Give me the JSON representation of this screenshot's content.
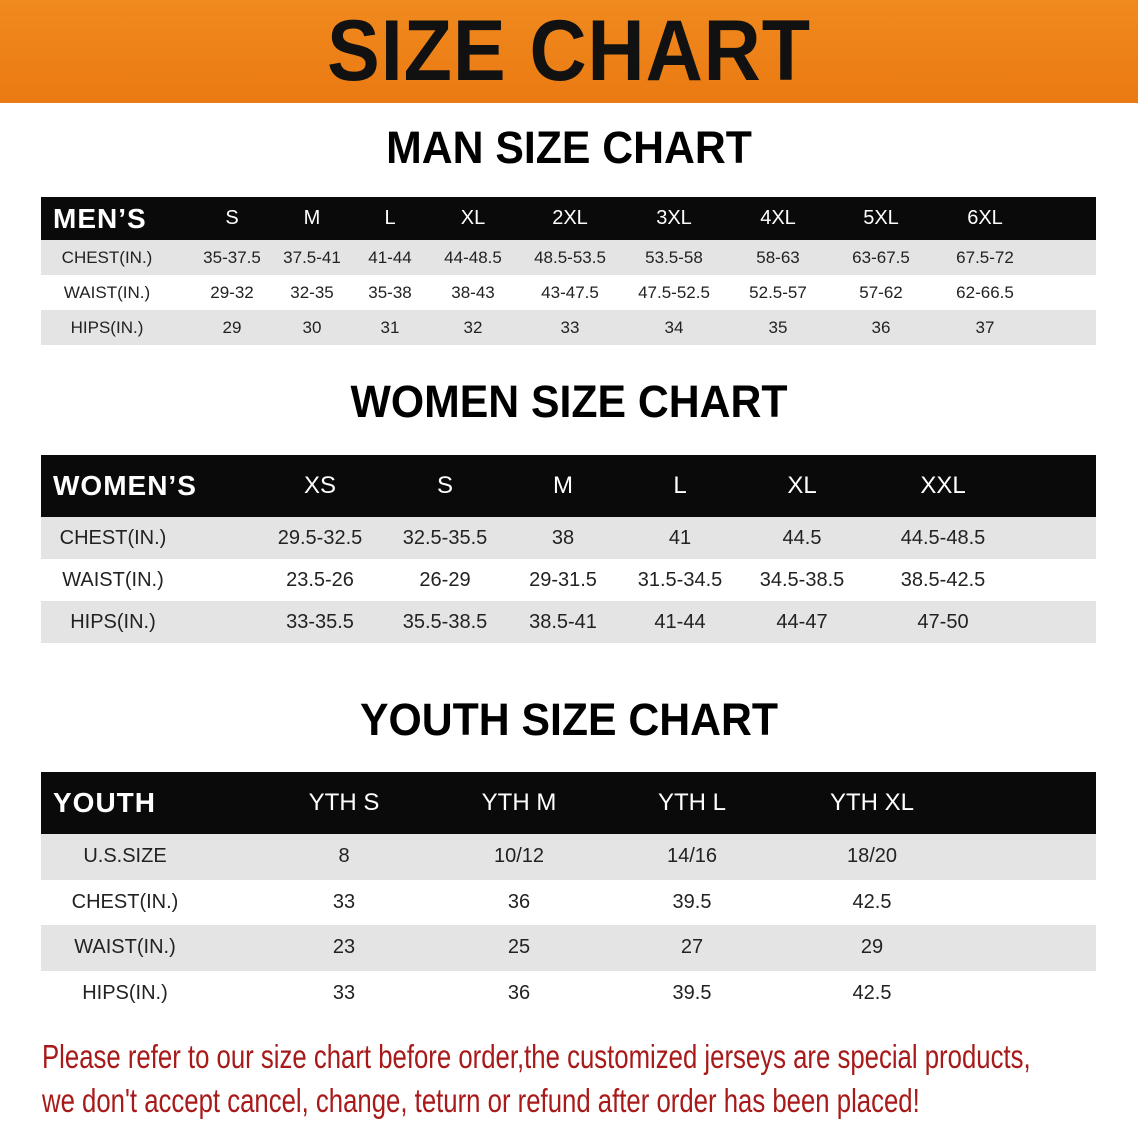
{
  "banner": {
    "title": "SIZE CHART",
    "bg_color": "#ee8318"
  },
  "men": {
    "title": "MAN SIZE CHART",
    "headers": [
      "MEN’S",
      "S",
      "M",
      "L",
      "XL",
      "2XL",
      "3XL",
      "4XL",
      "5XL",
      "6XL"
    ],
    "rows": [
      [
        "CHEST(IN.)",
        "35-37.5",
        "37.5-41",
        "41-44",
        "44-48.5",
        "48.5-53.5",
        "53.5-58",
        "58-63",
        "63-67.5",
        "67.5-72"
      ],
      [
        "WAIST(IN.)",
        "29-32",
        "32-35",
        "35-38",
        "38-43",
        "43-47.5",
        "47.5-52.5",
        "52.5-57",
        "57-62",
        "62-66.5"
      ],
      [
        "HIPS(IN.)",
        "29",
        "30",
        "31",
        "32",
        "33",
        "34",
        "35",
        "36",
        "37"
      ]
    ]
  },
  "women": {
    "title": "WOMEN SIZE CHART",
    "headers": [
      "WOMEN’S",
      "XS",
      "S",
      "M",
      "L",
      "XL",
      "XXL"
    ],
    "rows": [
      [
        "CHEST(IN.)",
        "29.5-32.5",
        "32.5-35.5",
        "38",
        "41",
        "44.5",
        "44.5-48.5"
      ],
      [
        "WAIST(IN.)",
        "23.5-26",
        "26-29",
        "29-31.5",
        "31.5-34.5",
        "34.5-38.5",
        "38.5-42.5"
      ],
      [
        "HIPS(IN.)",
        "33-35.5",
        "35.5-38.5",
        "38.5-41",
        "41-44",
        "44-47",
        "47-50"
      ]
    ]
  },
  "youth": {
    "title": "YOUTH SIZE CHART",
    "headers": [
      "YOUTH",
      "YTH S",
      "YTH M",
      "YTH L",
      "YTH XL"
    ],
    "rows": [
      [
        "U.S.SIZE",
        "8",
        "10/12",
        "14/16",
        "18/20"
      ],
      [
        "CHEST(IN.)",
        "33",
        "36",
        "39.5",
        "42.5"
      ],
      [
        "WAIST(IN.)",
        "23",
        "25",
        "27",
        "29"
      ],
      [
        "HIPS(IN.)",
        "33",
        "36",
        "39.5",
        "42.5"
      ]
    ]
  },
  "footer": {
    "line1": "Please refer to our size chart before order,the customized jerseys are special products,",
    "line2": "we don't accept cancel, change, teturn or refund after order has been placed!",
    "color": "#a81a1a"
  }
}
